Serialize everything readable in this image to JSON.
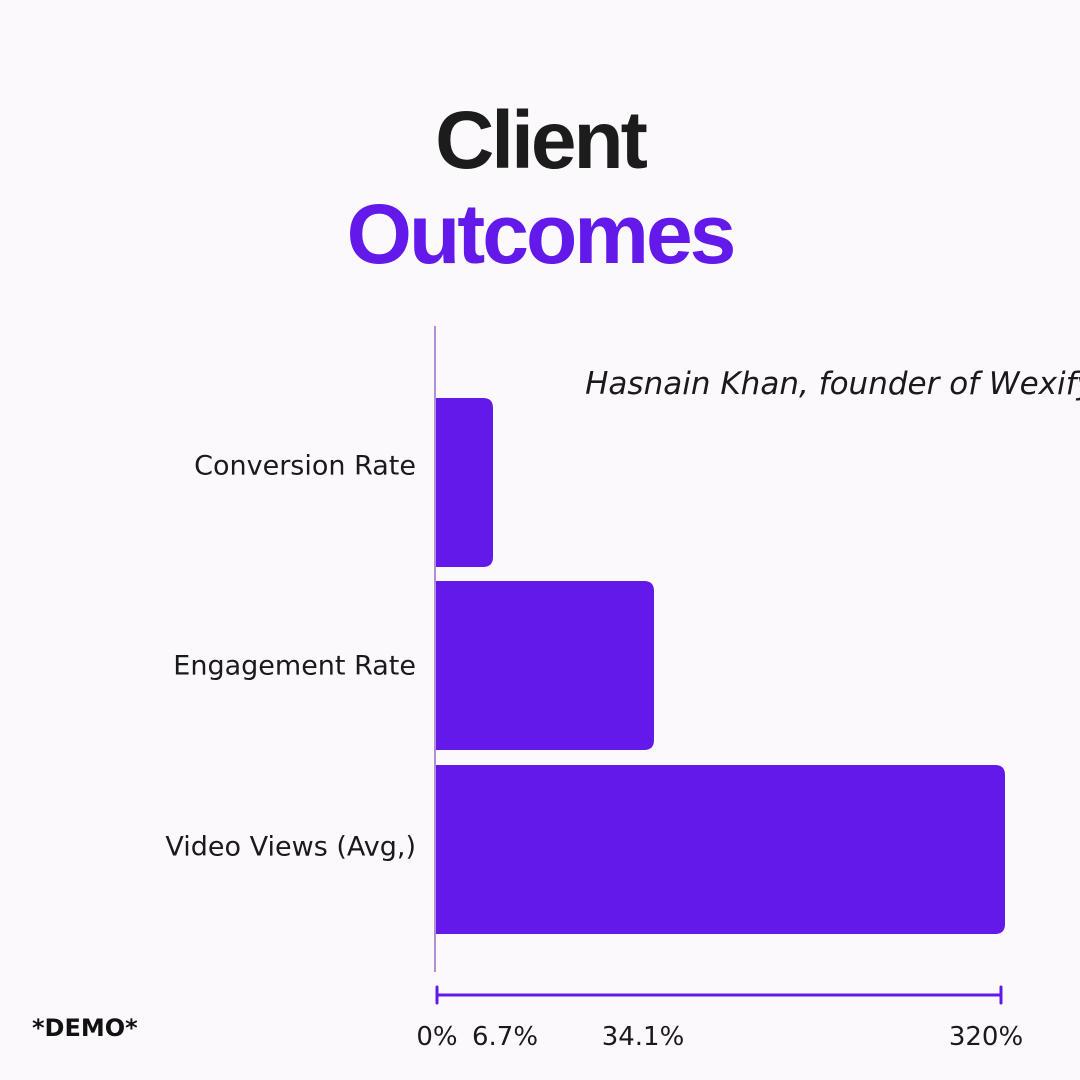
{
  "title": {
    "line1": "Client",
    "line2": "Outcomes"
  },
  "annotation": "Hasnain Khan, founder of Wexify",
  "footnote": "*DEMO*",
  "colors": {
    "bar": "#6219ea",
    "title_dark": "#1c1c1c",
    "title_accent": "#6219ea",
    "axis_line": "#b38fd8",
    "background": "#fcf9fd"
  },
  "chart_data": {
    "type": "bar",
    "orientation": "horizontal",
    "categories": [
      "Conversion Rate",
      "Engagement Rate",
      "Video Views (Avg,)"
    ],
    "values": [
      6.7,
      34.1,
      320
    ],
    "x_tick_labels": [
      "0%",
      "6.7%",
      "34.1%",
      "320%"
    ],
    "title": "Client Outcomes",
    "xlabel": "",
    "ylabel": "",
    "unit": "%",
    "scale": "non-linear"
  }
}
